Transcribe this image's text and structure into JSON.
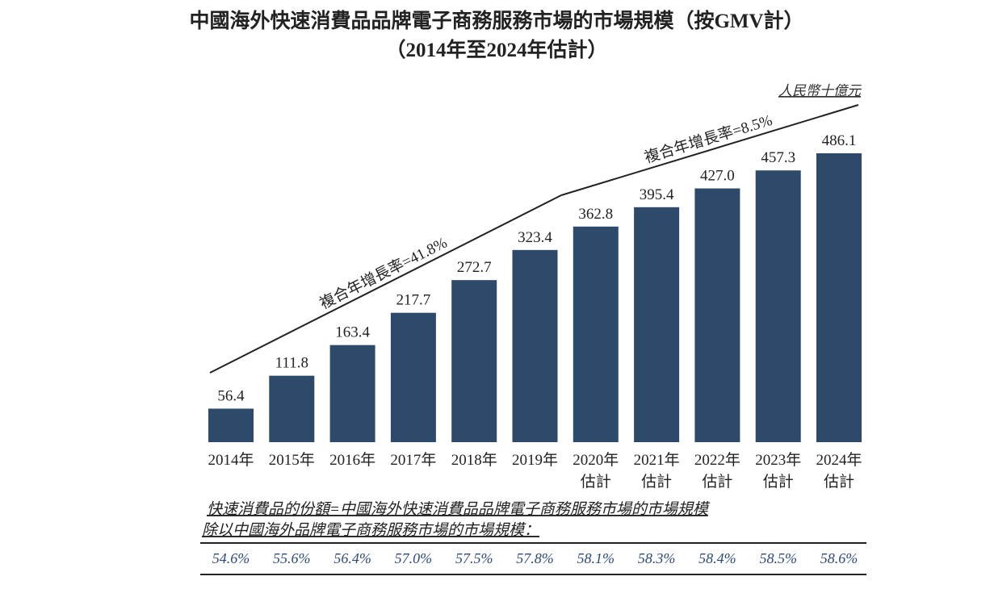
{
  "chart_data": {
    "type": "bar",
    "title": "中國海外快速消費品品牌電子商務服務市場的市場規模（按GMV計）",
    "subtitle": "（2014年至2024年估計）",
    "unit_label": "人民幣十億元",
    "categories": [
      [
        "2014年"
      ],
      [
        "2015年"
      ],
      [
        "2016年"
      ],
      [
        "2017年"
      ],
      [
        "2018年"
      ],
      [
        "2019年"
      ],
      [
        "2020年",
        "估計"
      ],
      [
        "2021年",
        "估計"
      ],
      [
        "2022年",
        "估計"
      ],
      [
        "2023年",
        "估計"
      ],
      [
        "2024年",
        "估計"
      ]
    ],
    "values": [
      56.4,
      111.8,
      163.4,
      217.7,
      272.7,
      323.4,
      362.8,
      395.4,
      427.0,
      457.3,
      486.1
    ],
    "value_labels": [
      "56.4",
      "111.8",
      "163.4",
      "217.7",
      "272.7",
      "323.4",
      "362.8",
      "395.4",
      "427.0",
      "457.3",
      "486.1"
    ],
    "bar_color": "#2e4a6b",
    "ylim": [
      0,
      486.1
    ],
    "grid": false,
    "annotations": [
      {
        "text": "複合年增長率=41.8%",
        "from": "2014年",
        "to": "2019年"
      },
      {
        "text": "複合年增長率=8.5%",
        "from": "2019年",
        "to": "2024年"
      }
    ],
    "footnote": {
      "lines": [
        "快速消費品的份額=中國海外快速消費品品牌電子商務服務市場的市場規模",
        "除以中國海外品牌電子商務服務市場的市場規模："
      ],
      "values": [
        "54.6%",
        "55.6%",
        "56.4%",
        "57.0%",
        "57.5%",
        "57.8%",
        "58.1%",
        "58.3%",
        "58.4%",
        "58.5%",
        "58.6%"
      ],
      "color": "#2d4a7a"
    }
  }
}
